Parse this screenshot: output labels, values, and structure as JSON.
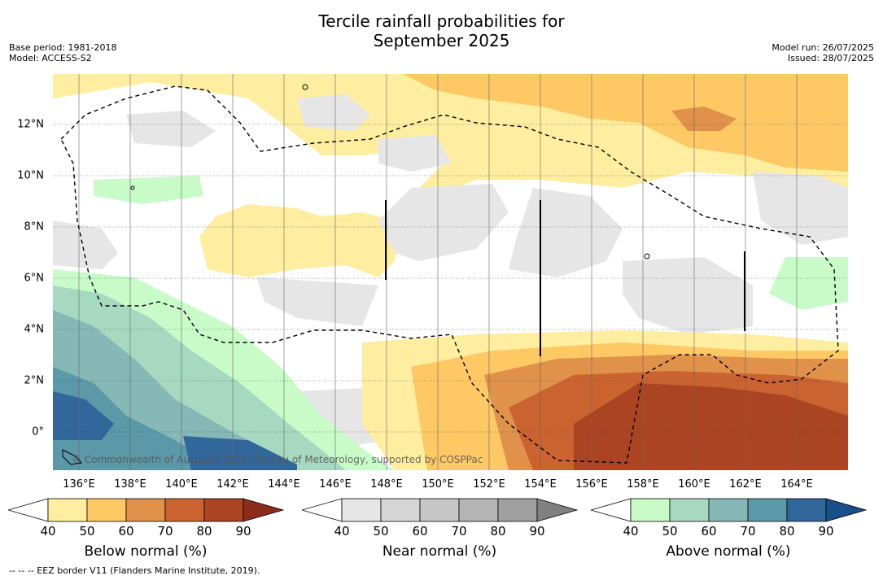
{
  "title_line1": "Tercile rainfall probabilities for",
  "title_line2": "September 2025",
  "meta_left": {
    "base_period": "Base period: 1981-2018",
    "model": "Model: ACCESS-S2"
  },
  "meta_right": {
    "model_run": "Model run: 26/07/2025",
    "issued": "Issued: 28/07/2025"
  },
  "credit": "© Commonwealth of Australia 2025, Bureau of Meteorology, supported by COSPPac",
  "footnote": "-- -- -- EEZ border V11 (Flanders Marine Institute, 2019).",
  "map": {
    "lon_labels": [
      "136°E",
      "138°E",
      "140°E",
      "142°E",
      "144°E",
      "146°E",
      "148°E",
      "150°E",
      "152°E",
      "154°E",
      "156°E",
      "158°E",
      "160°E",
      "162°E",
      "164°E"
    ],
    "lat_labels": [
      "12°N",
      "10°N",
      "8°N",
      "6°N",
      "4°N",
      "2°N",
      "0°"
    ]
  },
  "colorbars": [
    {
      "id": "below",
      "label": "Below normal (%)",
      "ticks": [
        "40",
        "50",
        "60",
        "70",
        "80",
        "90"
      ],
      "colors": [
        "#ffeda0",
        "#fec965",
        "#e0914a",
        "#cb6331",
        "#ab4423",
        "#8c2d1b"
      ]
    },
    {
      "id": "near",
      "label": "Near normal (%)",
      "ticks": [
        "40",
        "50",
        "60",
        "70",
        "80",
        "90"
      ],
      "colors": [
        "#e6e6e6",
        "#d6d6d6",
        "#c6c6c6",
        "#b4b4b4",
        "#a0a0a0",
        "#808080"
      ]
    },
    {
      "id": "above",
      "label": "Above normal (%)",
      "ticks": [
        "40",
        "50",
        "60",
        "70",
        "80",
        "90"
      ],
      "colors": [
        "#c9fbc9",
        "#a6d9bf",
        "#86b8b6",
        "#5b98a8",
        "#32679c",
        "#184e8a"
      ]
    }
  ]
}
